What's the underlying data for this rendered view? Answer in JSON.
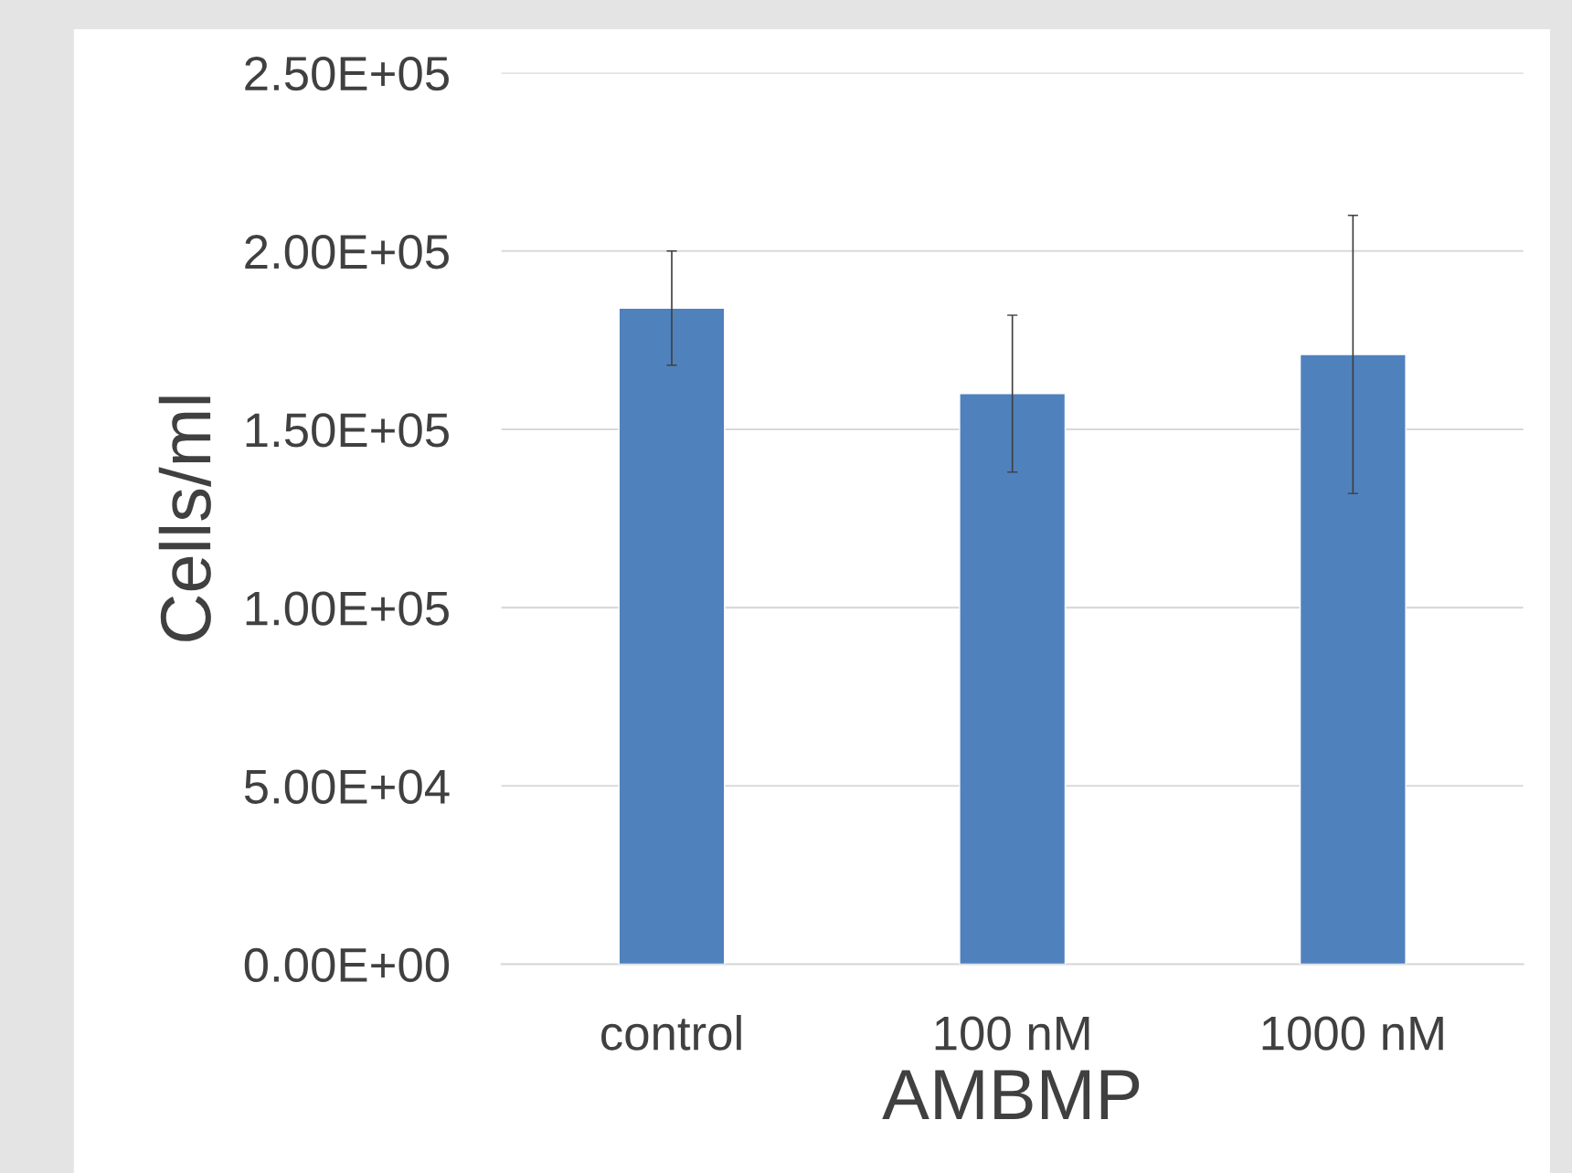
{
  "chart_data": {
    "type": "bar",
    "xlabel": "AMBMP",
    "ylabel": "Cells/ml",
    "categories": [
      "control",
      "100 nM",
      "1000 nM"
    ],
    "values": [
      184000,
      160000,
      171000
    ],
    "errors": [
      16000,
      22000,
      39000
    ],
    "color": "#4f81bd",
    "ylim": [
      0,
      250000
    ],
    "yticks": [
      {
        "value": 0,
        "label": "0.00E+00"
      },
      {
        "value": 50000,
        "label": "5.00E+04"
      },
      {
        "value": 100000,
        "label": "1.00E+05"
      },
      {
        "value": 150000,
        "label": "1.50E+05"
      },
      {
        "value": 200000,
        "label": "2.00E+05"
      },
      {
        "value": 250000,
        "label": "2.50E+05"
      }
    ],
    "grid": "y",
    "legend": false
  }
}
